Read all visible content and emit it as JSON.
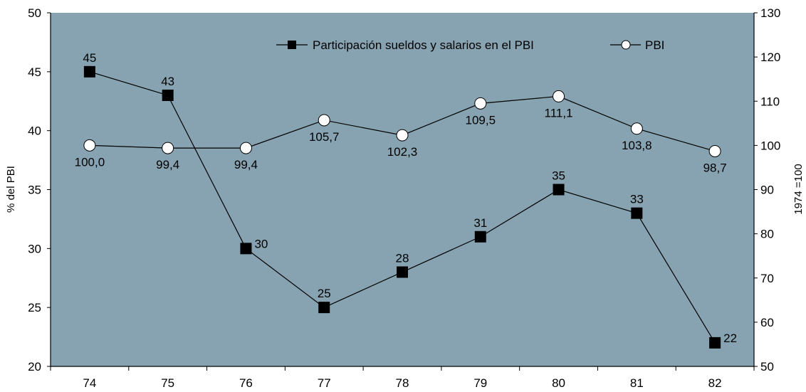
{
  "chart_data": {
    "type": "line",
    "categories": [
      "74",
      "75",
      "76",
      "77",
      "78",
      "79",
      "80",
      "81",
      "82"
    ],
    "series": [
      {
        "name": "Participación sueldos y salarios en el PBI",
        "axis": "left",
        "marker": "filled-square",
        "values": [
          45,
          43,
          30,
          25,
          28,
          31,
          35,
          33,
          22
        ],
        "labels": [
          "45",
          "43",
          "30",
          "25",
          "28",
          "31",
          "35",
          "33",
          "22"
        ]
      },
      {
        "name": "PBI",
        "axis": "right",
        "marker": "open-circle",
        "values": [
          100.0,
          99.4,
          99.4,
          105.7,
          102.3,
          109.5,
          111.1,
          103.8,
          98.7
        ],
        "labels": [
          "100,0",
          "99,4",
          "99,4",
          "105,7",
          "102,3",
          "109,5",
          "111,1",
          "103,8",
          "98,7"
        ]
      }
    ],
    "y_left": {
      "label": "% del PBI",
      "ylim": [
        20,
        50
      ],
      "ticks": [
        20,
        25,
        30,
        35,
        40,
        45,
        50
      ]
    },
    "y_right": {
      "label": "1974 =100",
      "ylim": [
        50,
        130
      ],
      "ticks": [
        50,
        60,
        70,
        80,
        90,
        100,
        110,
        120,
        130
      ]
    },
    "grid": false,
    "legend_position": "top"
  },
  "colors": {
    "plot_background": "#87a3b1",
    "line": "#000000",
    "marker_fill_square": "#000000",
    "marker_fill_circle": "#ffffff"
  }
}
